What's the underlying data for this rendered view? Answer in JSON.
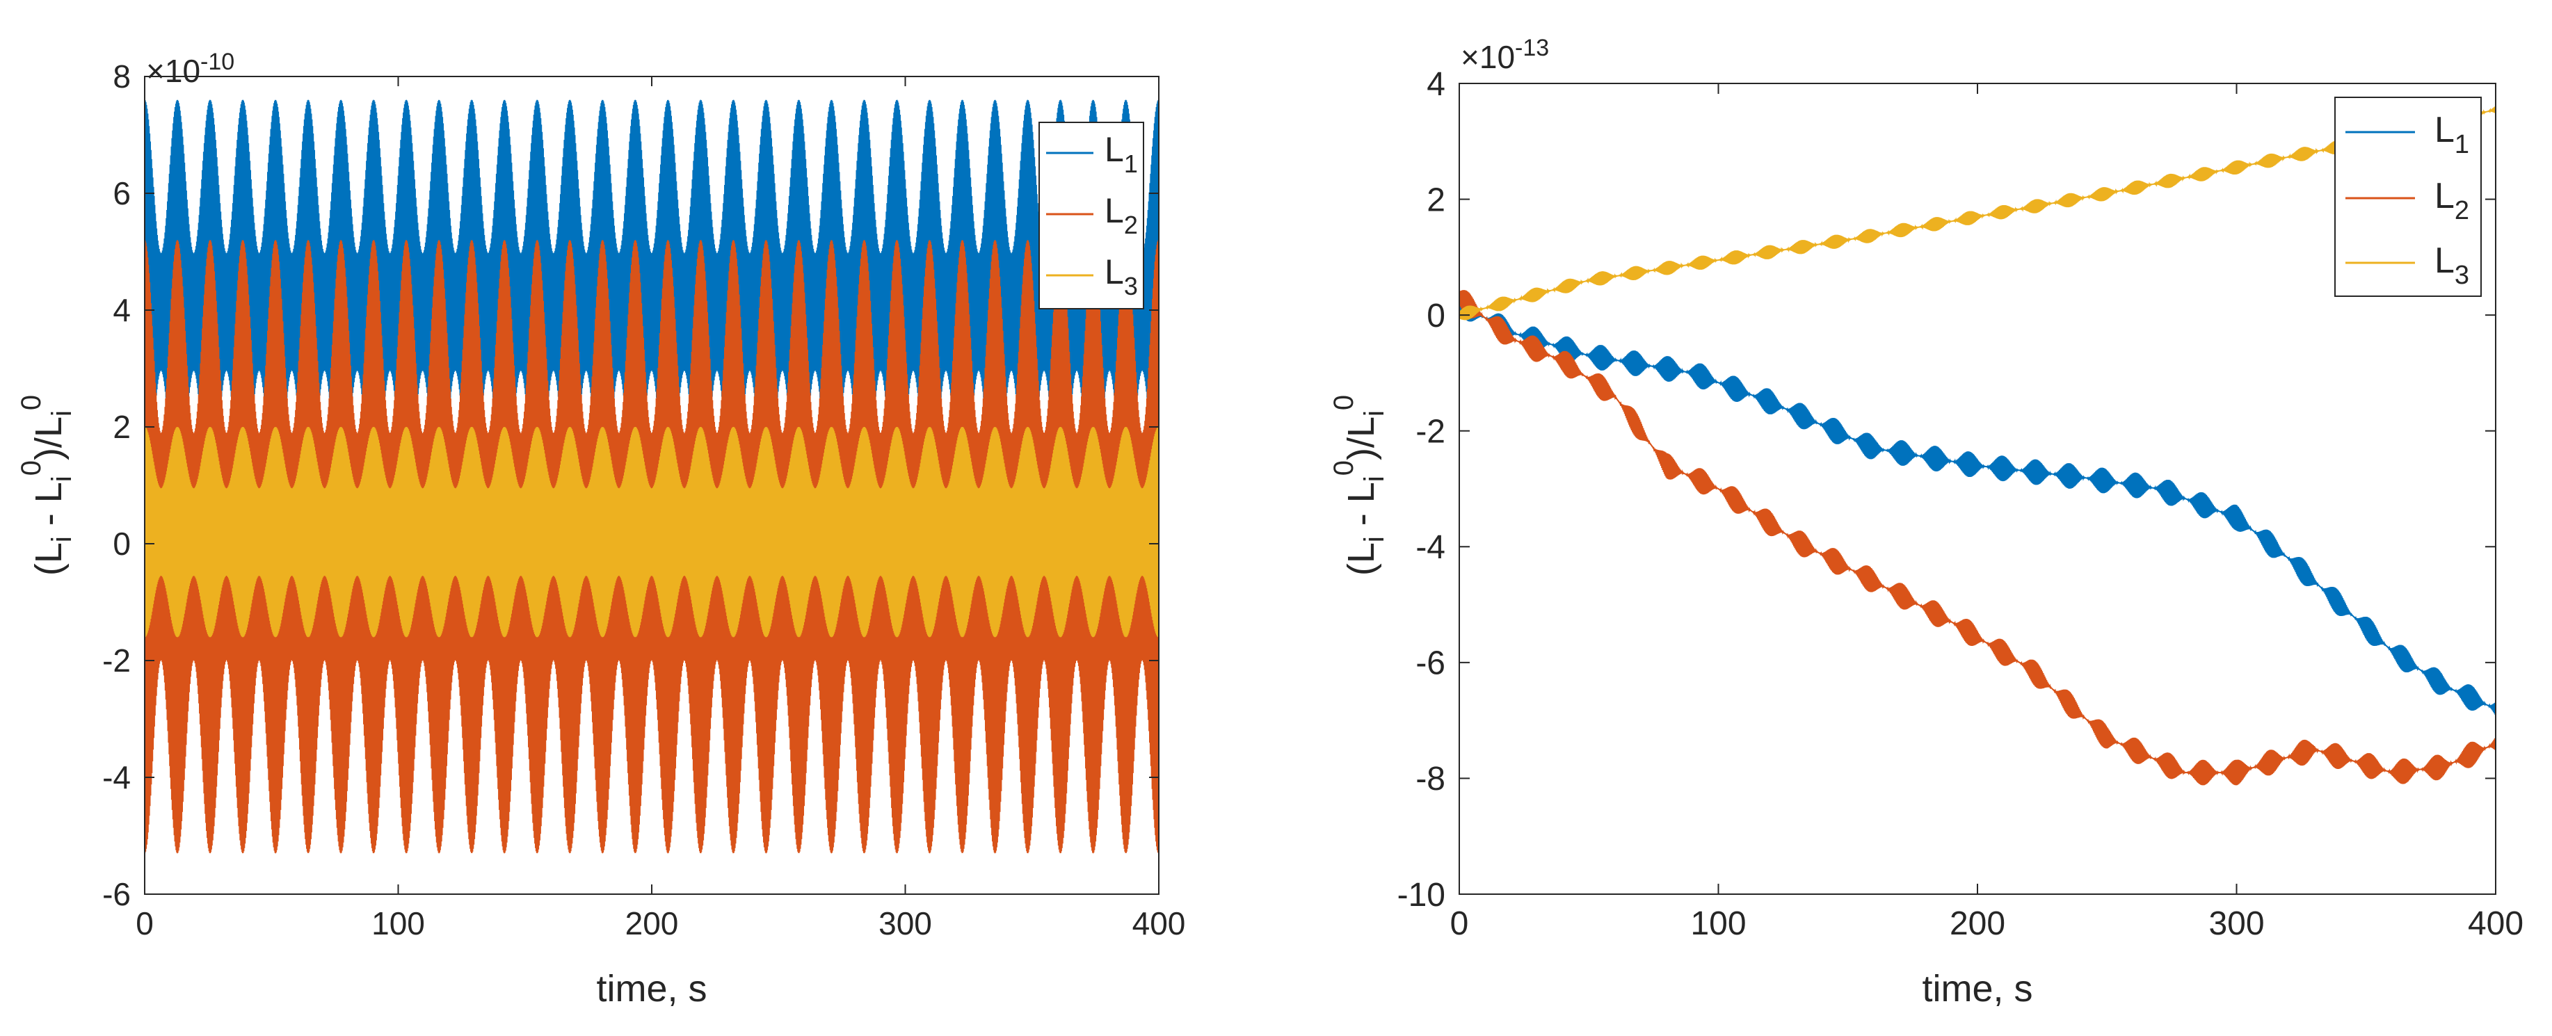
{
  "chart_data": [
    {
      "type": "line",
      "xlabel": "time, s",
      "ylabel": {
        "open": "(L",
        "sub_i": "i",
        "minus": " - L",
        "sup_0": "0",
        "close": ")/L"
      },
      "exponent": {
        "base": "×10",
        "power": "-10"
      },
      "xlim": [
        0,
        400
      ],
      "ylim": [
        -6,
        8
      ],
      "xticks": [
        0,
        100,
        200,
        300,
        400
      ],
      "yticks": [
        -6,
        -4,
        -2,
        0,
        2,
        4,
        6,
        8
      ],
      "legend_position": "top-right",
      "series": [
        {
          "name": "L",
          "sub": "1",
          "color": "#0072BD",
          "description": "oscillation",
          "period": 12.9,
          "min": 0.3,
          "max": 7.6
        },
        {
          "name": "L",
          "sub": "2",
          "color": "#D95319",
          "description": "oscillation",
          "period": 12.9,
          "min": -5.3,
          "max": 5.2
        },
        {
          "name": "L",
          "sub": "3",
          "color": "#EDB120",
          "description": "oscillation",
          "period": 12.9,
          "min": -1.6,
          "max": 2.0
        }
      ]
    },
    {
      "type": "line",
      "xlabel": "time, s",
      "ylabel": {
        "open": "(L",
        "sub_i": "i",
        "minus": " - L",
        "sup_0": "0",
        "close": ")/L"
      },
      "exponent": {
        "base": "×10",
        "power": "-13"
      },
      "xlim": [
        0,
        400
      ],
      "ylim": [
        -10,
        4
      ],
      "xticks": [
        0,
        100,
        200,
        300,
        400
      ],
      "yticks": [
        -10,
        -8,
        -6,
        -4,
        -2,
        0,
        2,
        4
      ],
      "legend_position": "top-right",
      "series": [
        {
          "name": "L",
          "sub": "1",
          "color": "#0072BD",
          "x": [
            0,
            20,
            50,
            90,
            120,
            160,
            200,
            240,
            270,
            300,
            320,
            340,
            360,
            380,
            400
          ],
          "y": [
            0.2,
            -0.3,
            -0.7,
            -1.0,
            -1.5,
            -2.3,
            -2.6,
            -2.8,
            -3.0,
            -3.5,
            -4.2,
            -5.0,
            -5.8,
            -6.4,
            -6.8
          ]
        },
        {
          "name": "L",
          "sub": "2",
          "color": "#D95319",
          "x": [
            0,
            20,
            40,
            60,
            80,
            100,
            130,
            160,
            190,
            220,
            250,
            280,
            300,
            330,
            360,
            380,
            400
          ],
          "y": [
            0.3,
            -0.4,
            -0.8,
            -1.4,
            -2.6,
            -3.0,
            -3.9,
            -4.6,
            -5.3,
            -6.1,
            -7.3,
            -7.9,
            -7.9,
            -7.5,
            -7.9,
            -7.8,
            -7.4
          ]
        },
        {
          "name": "L",
          "sub": "3",
          "color": "#EDB120",
          "x": [
            0,
            50,
            100,
            150,
            200,
            250,
            300,
            350,
            400
          ],
          "y": [
            0.0,
            0.6,
            0.95,
            1.3,
            1.7,
            2.1,
            2.55,
            3.0,
            3.55
          ]
        }
      ]
    }
  ]
}
